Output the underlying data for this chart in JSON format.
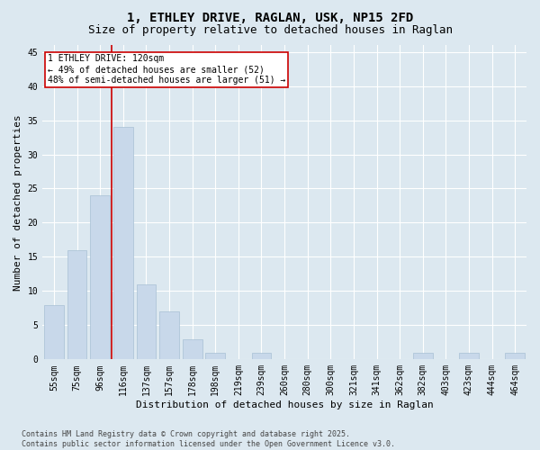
{
  "title_line1": "1, ETHLEY DRIVE, RAGLAN, USK, NP15 2FD",
  "title_line2": "Size of property relative to detached houses in Raglan",
  "xlabel": "Distribution of detached houses by size in Raglan",
  "ylabel": "Number of detached properties",
  "categories": [
    "55sqm",
    "75sqm",
    "96sqm",
    "116sqm",
    "137sqm",
    "157sqm",
    "178sqm",
    "198sqm",
    "219sqm",
    "239sqm",
    "260sqm",
    "280sqm",
    "300sqm",
    "321sqm",
    "341sqm",
    "362sqm",
    "382sqm",
    "403sqm",
    "423sqm",
    "444sqm",
    "464sqm"
  ],
  "values": [
    8,
    16,
    24,
    34,
    11,
    7,
    3,
    1,
    0,
    1,
    0,
    0,
    0,
    0,
    0,
    0,
    1,
    0,
    1,
    0,
    1
  ],
  "bar_color": "#c8d8ea",
  "bar_edge_color": "#a8c0d4",
  "background_color": "#dce8f0",
  "grid_color": "#ffffff",
  "vline_color": "#cc0000",
  "vline_x_index": 3,
  "annotation_text": "1 ETHLEY DRIVE: 120sqm\n← 49% of detached houses are smaller (52)\n48% of semi-detached houses are larger (51) →",
  "annotation_box_color": "#ffffff",
  "annotation_box_edge_color": "#cc0000",
  "ylim": [
    0,
    46
  ],
  "yticks": [
    0,
    5,
    10,
    15,
    20,
    25,
    30,
    35,
    40,
    45
  ],
  "footer_line1": "Contains HM Land Registry data © Crown copyright and database right 2025.",
  "footer_line2": "Contains public sector information licensed under the Open Government Licence v3.0.",
  "title_fontsize": 10,
  "subtitle_fontsize": 9,
  "axis_label_fontsize": 8,
  "tick_fontsize": 7,
  "annotation_fontsize": 7,
  "footer_fontsize": 6,
  "fig_bg_color": "#dce8f0"
}
